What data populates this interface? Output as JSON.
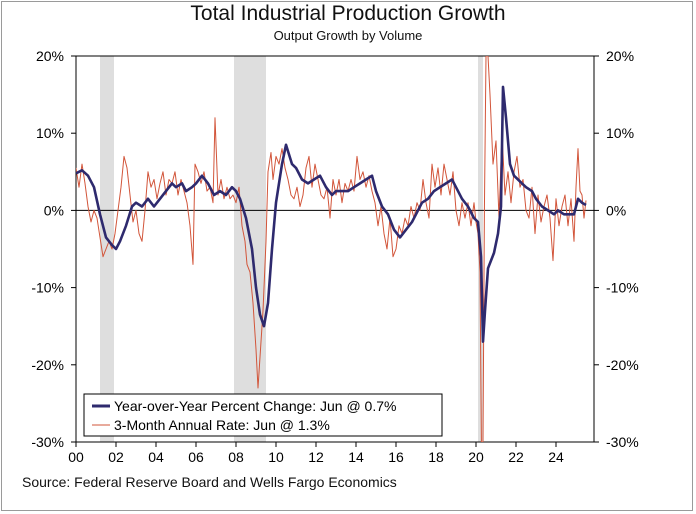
{
  "title": "Total Industrial Production Growth",
  "subtitle": "Output Growth by Volume",
  "source": "Source: Federal Reserve Board and Wells Fargo Economics",
  "colors": {
    "yoy": "#2e2a6e",
    "three_month": "#d2553a",
    "recession": "#dedede",
    "zero_line": "#000000"
  },
  "chart_data": {
    "type": "line",
    "title": "Total Industrial Production Growth",
    "subtitle": "Output Growth by Volume",
    "x_ticks": [
      "00",
      "02",
      "04",
      "06",
      "08",
      "10",
      "12",
      "14",
      "16",
      "18",
      "20",
      "22",
      "24"
    ],
    "y_ticks_left": [
      "20%",
      "10%",
      "0%",
      "-10%",
      "-20%",
      "-30%"
    ],
    "y_ticks_right": [
      "20%",
      "10%",
      "0%",
      "-10%",
      "-20%",
      "-30%"
    ],
    "xlim": [
      2000.0,
      2025.9
    ],
    "ylim": [
      -30,
      20
    ],
    "legend_position": "bottom-left",
    "recessions": [
      [
        2001.2,
        2001.9
      ],
      [
        2007.9,
        2009.5
      ],
      [
        2020.1,
        2020.35
      ]
    ],
    "series": [
      {
        "name": "Year-over-Year Percent Change: Jun @ 0.7%",
        "style": "thick",
        "points": [
          [
            2000.0,
            4.8
          ],
          [
            2000.3,
            5.2
          ],
          [
            2000.6,
            4.5
          ],
          [
            2000.9,
            3.0
          ],
          [
            2001.2,
            -0.5
          ],
          [
            2001.5,
            -3.5
          ],
          [
            2001.8,
            -4.5
          ],
          [
            2002.0,
            -5.0
          ],
          [
            2002.2,
            -4.0
          ],
          [
            2002.5,
            -2.0
          ],
          [
            2002.8,
            0.5
          ],
          [
            2003.0,
            1.0
          ],
          [
            2003.3,
            0.5
          ],
          [
            2003.6,
            1.5
          ],
          [
            2003.9,
            0.5
          ],
          [
            2004.2,
            1.5
          ],
          [
            2004.5,
            2.5
          ],
          [
            2004.8,
            3.5
          ],
          [
            2005.0,
            3.0
          ],
          [
            2005.3,
            3.5
          ],
          [
            2005.5,
            2.5
          ],
          [
            2005.8,
            3.0
          ],
          [
            2006.0,
            3.5
          ],
          [
            2006.3,
            4.5
          ],
          [
            2006.6,
            3.5
          ],
          [
            2006.9,
            2.0
          ],
          [
            2007.2,
            2.5
          ],
          [
            2007.5,
            2.0
          ],
          [
            2007.8,
            3.0
          ],
          [
            2008.0,
            2.5
          ],
          [
            2008.2,
            1.5
          ],
          [
            2008.5,
            -1.0
          ],
          [
            2008.8,
            -5.0
          ],
          [
            2009.0,
            -10.0
          ],
          [
            2009.2,
            -13.5
          ],
          [
            2009.4,
            -15.0
          ],
          [
            2009.6,
            -12.0
          ],
          [
            2009.8,
            -5.0
          ],
          [
            2010.0,
            1.0
          ],
          [
            2010.3,
            6.0
          ],
          [
            2010.5,
            8.5
          ],
          [
            2010.8,
            6.0
          ],
          [
            2011.0,
            5.5
          ],
          [
            2011.3,
            4.0
          ],
          [
            2011.6,
            3.5
          ],
          [
            2011.9,
            4.0
          ],
          [
            2012.2,
            4.5
          ],
          [
            2012.5,
            3.0
          ],
          [
            2012.8,
            2.0
          ],
          [
            2013.0,
            2.5
          ],
          [
            2013.3,
            2.5
          ],
          [
            2013.6,
            2.5
          ],
          [
            2013.9,
            3.0
          ],
          [
            2014.2,
            3.5
          ],
          [
            2014.5,
            4.0
          ],
          [
            2014.8,
            4.5
          ],
          [
            2015.0,
            2.5
          ],
          [
            2015.3,
            0.5
          ],
          [
            2015.6,
            -0.5
          ],
          [
            2015.9,
            -2.5
          ],
          [
            2016.2,
            -3.5
          ],
          [
            2016.5,
            -2.5
          ],
          [
            2016.8,
            -1.5
          ],
          [
            2017.0,
            -0.5
          ],
          [
            2017.3,
            1.0
          ],
          [
            2017.6,
            1.5
          ],
          [
            2017.9,
            2.5
          ],
          [
            2018.2,
            3.0
          ],
          [
            2018.5,
            3.5
          ],
          [
            2018.8,
            4.0
          ],
          [
            2019.0,
            3.0
          ],
          [
            2019.3,
            1.5
          ],
          [
            2019.6,
            0.5
          ],
          [
            2019.9,
            -1.0
          ],
          [
            2020.1,
            -1.5
          ],
          [
            2020.25,
            -6.0
          ],
          [
            2020.35,
            -17.0
          ],
          [
            2020.45,
            -13.0
          ],
          [
            2020.6,
            -7.5
          ],
          [
            2020.9,
            -5.5
          ],
          [
            2021.1,
            -3.0
          ],
          [
            2021.25,
            0.5
          ],
          [
            2021.35,
            16.0
          ],
          [
            2021.5,
            12.0
          ],
          [
            2021.7,
            6.0
          ],
          [
            2021.9,
            4.5
          ],
          [
            2022.1,
            4.0
          ],
          [
            2022.3,
            3.5
          ],
          [
            2022.5,
            3.0
          ],
          [
            2022.8,
            2.5
          ],
          [
            2023.0,
            1.5
          ],
          [
            2023.3,
            0.5
          ],
          [
            2023.6,
            0.0
          ],
          [
            2023.9,
            -0.5
          ],
          [
            2024.1,
            0.0
          ],
          [
            2024.4,
            -0.5
          ],
          [
            2024.7,
            -0.5
          ],
          [
            2024.9,
            -0.5
          ],
          [
            2025.1,
            1.5
          ],
          [
            2025.3,
            1.0
          ],
          [
            2025.5,
            0.7
          ]
        ]
      },
      {
        "name": "3-Month Annual Rate: Jun @ 1.3%",
        "style": "thin",
        "points": [
          [
            2000.0,
            5.5
          ],
          [
            2000.15,
            3.0
          ],
          [
            2000.3,
            6.0
          ],
          [
            2000.45,
            3.5
          ],
          [
            2000.6,
            0.5
          ],
          [
            2000.75,
            -1.5
          ],
          [
            2000.9,
            0.0
          ],
          [
            2001.05,
            -1.0
          ],
          [
            2001.2,
            -3.5
          ],
          [
            2001.35,
            -6.0
          ],
          [
            2001.5,
            -5.0
          ],
          [
            2001.65,
            -4.0
          ],
          [
            2001.8,
            -5.0
          ],
          [
            2001.95,
            -3.0
          ],
          [
            2002.1,
            0.0
          ],
          [
            2002.25,
            3.0
          ],
          [
            2002.4,
            7.0
          ],
          [
            2002.55,
            5.5
          ],
          [
            2002.7,
            2.0
          ],
          [
            2002.85,
            -1.5
          ],
          [
            2003.0,
            0.0
          ],
          [
            2003.15,
            -3.0
          ],
          [
            2003.3,
            -4.0
          ],
          [
            2003.45,
            0.0
          ],
          [
            2003.6,
            5.0
          ],
          [
            2003.75,
            3.0
          ],
          [
            2003.9,
            4.0
          ],
          [
            2004.05,
            1.5
          ],
          [
            2004.2,
            3.5
          ],
          [
            2004.35,
            5.0
          ],
          [
            2004.5,
            2.0
          ],
          [
            2004.65,
            4.0
          ],
          [
            2004.8,
            3.5
          ],
          [
            2004.95,
            5.0
          ],
          [
            2005.1,
            2.0
          ],
          [
            2005.25,
            4.0
          ],
          [
            2005.4,
            2.5
          ],
          [
            2005.55,
            1.0
          ],
          [
            2005.7,
            -2.0
          ],
          [
            2005.85,
            -7.0
          ],
          [
            2005.95,
            6.0
          ],
          [
            2006.1,
            5.0
          ],
          [
            2006.25,
            3.5
          ],
          [
            2006.4,
            5.0
          ],
          [
            2006.55,
            2.5
          ],
          [
            2006.7,
            3.0
          ],
          [
            2006.85,
            1.0
          ],
          [
            2006.95,
            12.0
          ],
          [
            2007.1,
            2.0
          ],
          [
            2007.25,
            4.0
          ],
          [
            2007.4,
            1.5
          ],
          [
            2007.55,
            3.0
          ],
          [
            2007.7,
            1.5
          ],
          [
            2007.85,
            2.0
          ],
          [
            2008.0,
            1.0
          ],
          [
            2008.15,
            3.0
          ],
          [
            2008.3,
            -2.0
          ],
          [
            2008.45,
            -4.0
          ],
          [
            2008.55,
            -7.0
          ],
          [
            2008.7,
            -8.0
          ],
          [
            2008.85,
            -12.0
          ],
          [
            2009.0,
            -18.0
          ],
          [
            2009.1,
            -23.0
          ],
          [
            2009.2,
            -19.0
          ],
          [
            2009.35,
            -13.0
          ],
          [
            2009.5,
            -4.0
          ],
          [
            2009.6,
            5.0
          ],
          [
            2009.75,
            7.5
          ],
          [
            2009.85,
            4.0
          ],
          [
            2010.0,
            7.0
          ],
          [
            2010.15,
            6.0
          ],
          [
            2010.3,
            8.0
          ],
          [
            2010.45,
            5.5
          ],
          [
            2010.6,
            4.0
          ],
          [
            2010.75,
            2.0
          ],
          [
            2010.9,
            1.5
          ],
          [
            2011.05,
            3.0
          ],
          [
            2011.2,
            0.5
          ],
          [
            2011.35,
            2.0
          ],
          [
            2011.5,
            5.5
          ],
          [
            2011.65,
            7.0
          ],
          [
            2011.8,
            3.0
          ],
          [
            2011.95,
            6.0
          ],
          [
            2012.1,
            4.0
          ],
          [
            2012.25,
            2.0
          ],
          [
            2012.4,
            1.5
          ],
          [
            2012.55,
            3.0
          ],
          [
            2012.7,
            -1.0
          ],
          [
            2012.85,
            4.0
          ],
          [
            2013.0,
            2.0
          ],
          [
            2013.15,
            4.0
          ],
          [
            2013.3,
            1.0
          ],
          [
            2013.45,
            3.5
          ],
          [
            2013.6,
            2.5
          ],
          [
            2013.75,
            4.0
          ],
          [
            2013.9,
            2.5
          ],
          [
            2014.05,
            7.0
          ],
          [
            2014.2,
            4.0
          ],
          [
            2014.35,
            5.0
          ],
          [
            2014.5,
            3.0
          ],
          [
            2014.65,
            4.5
          ],
          [
            2014.8,
            2.5
          ],
          [
            2014.95,
            1.0
          ],
          [
            2015.1,
            -2.0
          ],
          [
            2015.25,
            0.5
          ],
          [
            2015.4,
            -3.0
          ],
          [
            2015.55,
            -5.0
          ],
          [
            2015.7,
            -1.0
          ],
          [
            2015.85,
            -6.0
          ],
          [
            2016.0,
            -5.0
          ],
          [
            2016.15,
            -2.0
          ],
          [
            2016.3,
            -3.0
          ],
          [
            2016.45,
            -1.0
          ],
          [
            2016.6,
            -2.0
          ],
          [
            2016.75,
            0.5
          ],
          [
            2016.9,
            -1.0
          ],
          [
            2017.05,
            1.0
          ],
          [
            2017.2,
            0.0
          ],
          [
            2017.35,
            4.0
          ],
          [
            2017.5,
            1.0
          ],
          [
            2017.65,
            -1.0
          ],
          [
            2017.8,
            6.0
          ],
          [
            2017.95,
            3.0
          ],
          [
            2018.1,
            5.5
          ],
          [
            2018.25,
            2.0
          ],
          [
            2018.4,
            6.0
          ],
          [
            2018.55,
            4.0
          ],
          [
            2018.7,
            2.0
          ],
          [
            2018.85,
            5.0
          ],
          [
            2019.0,
            0.0
          ],
          [
            2019.15,
            -2.0
          ],
          [
            2019.3,
            1.0
          ],
          [
            2019.45,
            -1.0
          ],
          [
            2019.6,
            1.0
          ],
          [
            2019.75,
            -2.0
          ],
          [
            2019.9,
            1.0
          ],
          [
            2020.0,
            -1.5
          ],
          [
            2020.1,
            -3.0
          ],
          [
            2020.2,
            -8.0
          ],
          [
            2020.27,
            -30.0
          ],
          [
            2020.35,
            -30.0
          ],
          [
            2020.42,
            0.0
          ],
          [
            2020.5,
            20.0
          ],
          [
            2020.6,
            20.0
          ],
          [
            2020.7,
            15.0
          ],
          [
            2020.85,
            6.0
          ],
          [
            2021.0,
            9.0
          ],
          [
            2021.15,
            -1.0
          ],
          [
            2021.3,
            10.0
          ],
          [
            2021.45,
            2.0
          ],
          [
            2021.6,
            5.0
          ],
          [
            2021.75,
            1.0
          ],
          [
            2021.9,
            5.0
          ],
          [
            2022.05,
            7.0
          ],
          [
            2022.2,
            3.0
          ],
          [
            2022.35,
            4.0
          ],
          [
            2022.5,
            0.0
          ],
          [
            2022.65,
            -1.0
          ],
          [
            2022.8,
            3.0
          ],
          [
            2022.95,
            -3.0
          ],
          [
            2023.1,
            2.0
          ],
          [
            2023.25,
            -1.5
          ],
          [
            2023.4,
            0.5
          ],
          [
            2023.55,
            2.0
          ],
          [
            2023.7,
            -1.0
          ],
          [
            2023.85,
            -6.5
          ],
          [
            2024.0,
            1.5
          ],
          [
            2024.15,
            -2.0
          ],
          [
            2024.3,
            0.5
          ],
          [
            2024.45,
            2.0
          ],
          [
            2024.6,
            -2.0
          ],
          [
            2024.75,
            1.5
          ],
          [
            2024.9,
            -4.0
          ],
          [
            2025.0,
            3.0
          ],
          [
            2025.1,
            8.0
          ],
          [
            2025.2,
            2.5
          ],
          [
            2025.3,
            2.0
          ],
          [
            2025.4,
            -1.0
          ],
          [
            2025.5,
            1.3
          ]
        ]
      }
    ],
    "legend": [
      "Year-over-Year Percent Change: Jun @ 0.7%",
      "3-Month Annual Rate: Jun @ 1.3%"
    ]
  }
}
